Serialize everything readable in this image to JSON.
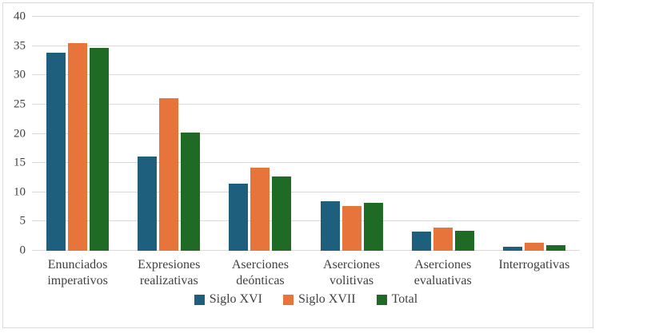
{
  "chart_data": {
    "type": "bar",
    "title": "",
    "xlabel": "",
    "ylabel": "",
    "categories": [
      "Enunciados imperativos",
      "Expresiones realizativas",
      "Aserciones deónticas",
      "Aserciones volitivas",
      "Aserciones evaluativas",
      "Interrogativas"
    ],
    "series": [
      {
        "name": "Siglo XVI",
        "color": "#1F5F7E",
        "values": [
          33.9,
          16.1,
          11.5,
          8.5,
          3.3,
          0.7
        ]
      },
      {
        "name": "Siglo XVII",
        "color": "#E7743A",
        "values": [
          35.5,
          26.1,
          14.2,
          7.7,
          4.0,
          1.3
        ]
      },
      {
        "name": "Total",
        "color": "#1F6B25",
        "values": [
          34.7,
          20.2,
          12.7,
          8.2,
          3.4,
          0.9
        ]
      }
    ],
    "ylim": [
      0,
      40
    ],
    "yticks": [
      0,
      5,
      10,
      15,
      20,
      25,
      30,
      35,
      40
    ],
    "grid": true,
    "legend_position": "bottom"
  },
  "styles": {
    "grid_color": "#D9D9D9",
    "frame_border_color": "#D9D9D9",
    "text_color": "#404040",
    "background": "#FFFFFF"
  }
}
